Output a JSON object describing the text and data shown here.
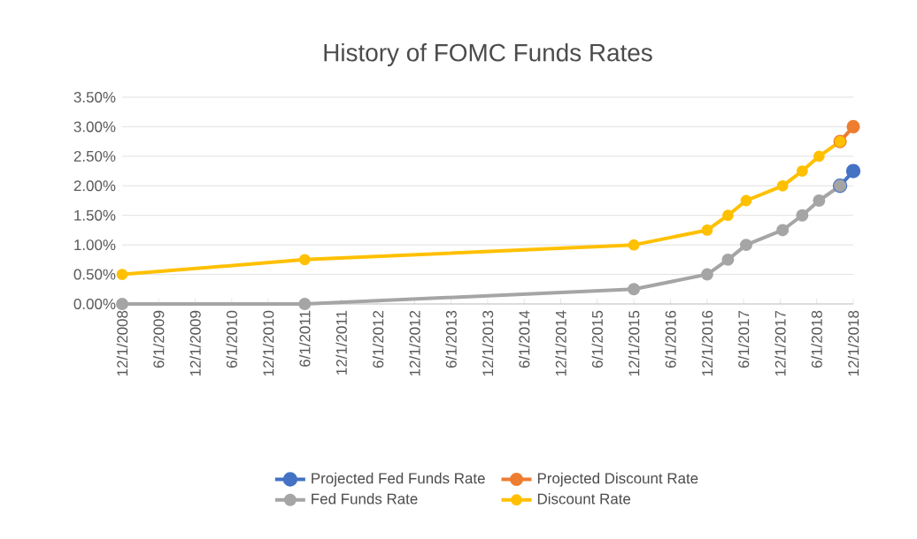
{
  "chart_data": {
    "type": "line",
    "title": "History of FOMC Funds Rates",
    "xlim": [
      "2008-12-01",
      "2018-12-01"
    ],
    "xticks": [
      {
        "value": "2008-12-01",
        "label": "12/1/2008"
      },
      {
        "value": "2009-06-01",
        "label": "6/1/2009"
      },
      {
        "value": "2009-12-01",
        "label": "12/1/2009"
      },
      {
        "value": "2010-06-01",
        "label": "6/1/2010"
      },
      {
        "value": "2010-12-01",
        "label": "12/1/2010"
      },
      {
        "value": "2011-06-01",
        "label": "6/1/2011"
      },
      {
        "value": "2011-12-01",
        "label": "12/1/2011"
      },
      {
        "value": "2012-06-01",
        "label": "6/1/2012"
      },
      {
        "value": "2012-12-01",
        "label": "12/1/2012"
      },
      {
        "value": "2013-06-01",
        "label": "6/1/2013"
      },
      {
        "value": "2013-12-01",
        "label": "12/1/2013"
      },
      {
        "value": "2014-06-01",
        "label": "6/1/2014"
      },
      {
        "value": "2014-12-01",
        "label": "12/1/2014"
      },
      {
        "value": "2015-06-01",
        "label": "6/1/2015"
      },
      {
        "value": "2015-12-01",
        "label": "12/1/2015"
      },
      {
        "value": "2016-06-01",
        "label": "6/1/2016"
      },
      {
        "value": "2016-12-01",
        "label": "12/1/2016"
      },
      {
        "value": "2017-06-01",
        "label": "6/1/2017"
      },
      {
        "value": "2017-12-01",
        "label": "12/1/2017"
      },
      {
        "value": "2018-06-01",
        "label": "6/1/2018"
      },
      {
        "value": "2018-12-01",
        "label": "12/1/2018"
      }
    ],
    "ylim": [
      0,
      3.5
    ],
    "yticks": [
      {
        "value": 0,
        "label": "0.00%"
      },
      {
        "value": 0.5,
        "label": "0.50%"
      },
      {
        "value": 1,
        "label": "1.00%"
      },
      {
        "value": 1.5,
        "label": "1.50%"
      },
      {
        "value": 2,
        "label": "2.00%"
      },
      {
        "value": 2.5,
        "label": "2.50%"
      },
      {
        "value": 3,
        "label": "3.00%"
      },
      {
        "value": 3.5,
        "label": "3.50%"
      }
    ],
    "grid": "y",
    "legend": "bottom",
    "marker": "circle",
    "line_style": "solid",
    "series": [
      {
        "name": "Projected Fed Funds Rate",
        "color": "#4472c4",
        "x": [
          "2018-09-26",
          "2018-12-01"
        ],
        "values": [
          2.0,
          2.25
        ]
      },
      {
        "name": "Projected Discount Rate",
        "color": "#ed7d31",
        "x": [
          "2018-09-26",
          "2018-12-01"
        ],
        "values": [
          2.75,
          3.0
        ]
      },
      {
        "name": "Fed Funds Rate",
        "color": "#a5a5a5",
        "x": [
          "2008-12-01",
          "2011-06-01",
          "2015-12-01",
          "2016-12-01",
          "2017-03-15",
          "2017-06-14",
          "2017-12-13",
          "2018-03-21",
          "2018-06-13",
          "2018-09-26"
        ],
        "values": [
          0,
          0,
          0.25,
          0.5,
          0.75,
          1.0,
          1.25,
          1.5,
          1.75,
          2.0
        ]
      },
      {
        "name": "Discount Rate",
        "color": "#ffc000",
        "x": [
          "2008-12-01",
          "2011-06-01",
          "2015-12-01",
          "2016-12-01",
          "2017-03-15",
          "2017-06-14",
          "2017-12-13",
          "2018-03-21",
          "2018-06-13",
          "2018-09-26"
        ],
        "values": [
          0.5,
          0.75,
          1.0,
          1.25,
          1.5,
          1.75,
          2.0,
          2.25,
          2.5,
          2.75
        ]
      }
    ]
  }
}
